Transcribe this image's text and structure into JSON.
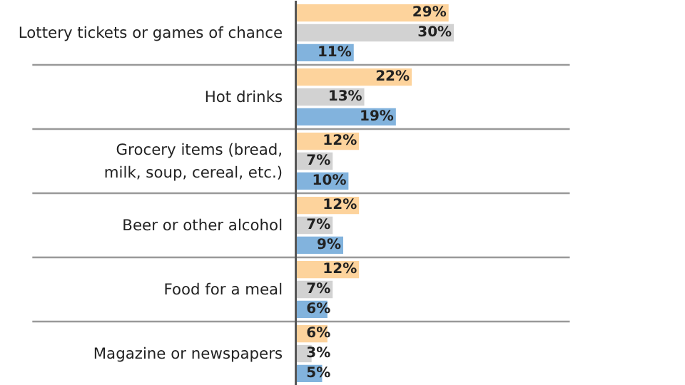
{
  "chart_data": {
    "type": "bar",
    "orientation": "horizontal",
    "grid": true,
    "categories": [
      "Lottery tickets or games of chance",
      "Hot drinks",
      "Grocery items (bread,\nmilk, soup, cereal, etc.)",
      "Beer or other alcohol",
      "Food for a meal",
      "Magazine or newspapers"
    ],
    "series": [
      {
        "color": "#fdd39c",
        "values": [
          29,
          22,
          12,
          12,
          12,
          6
        ],
        "value_labels": [
          "29%",
          "22%",
          "12%",
          "12%",
          "12%",
          "6%"
        ]
      },
      {
        "color": "#d2d2d2",
        "values": [
          30,
          13,
          7,
          7,
          7,
          3
        ],
        "value_labels": [
          "30%",
          "13%",
          "7%",
          "7%",
          "7%",
          "3%"
        ]
      },
      {
        "color": "#82b3dd",
        "values": [
          11,
          19,
          10,
          9,
          6,
          5
        ],
        "value_labels": [
          "11%",
          "19%",
          "10%",
          "9%",
          "6%",
          "5%"
        ]
      }
    ]
  }
}
